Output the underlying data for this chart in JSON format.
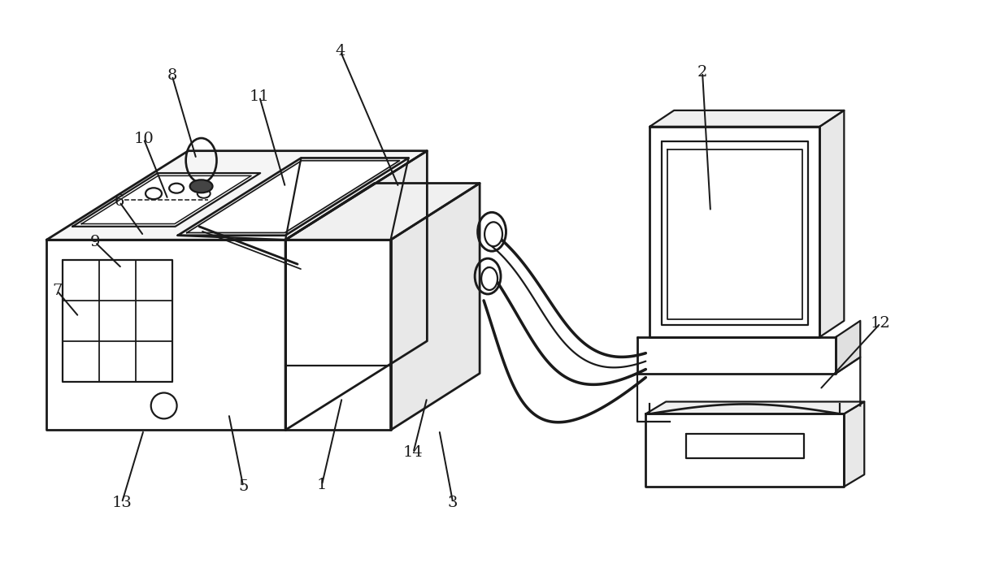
{
  "bg_color": "#ffffff",
  "line_color": "#1a1a1a",
  "lw": 1.6,
  "tlw": 2.0,
  "fig_width": 12.4,
  "fig_height": 7.09
}
